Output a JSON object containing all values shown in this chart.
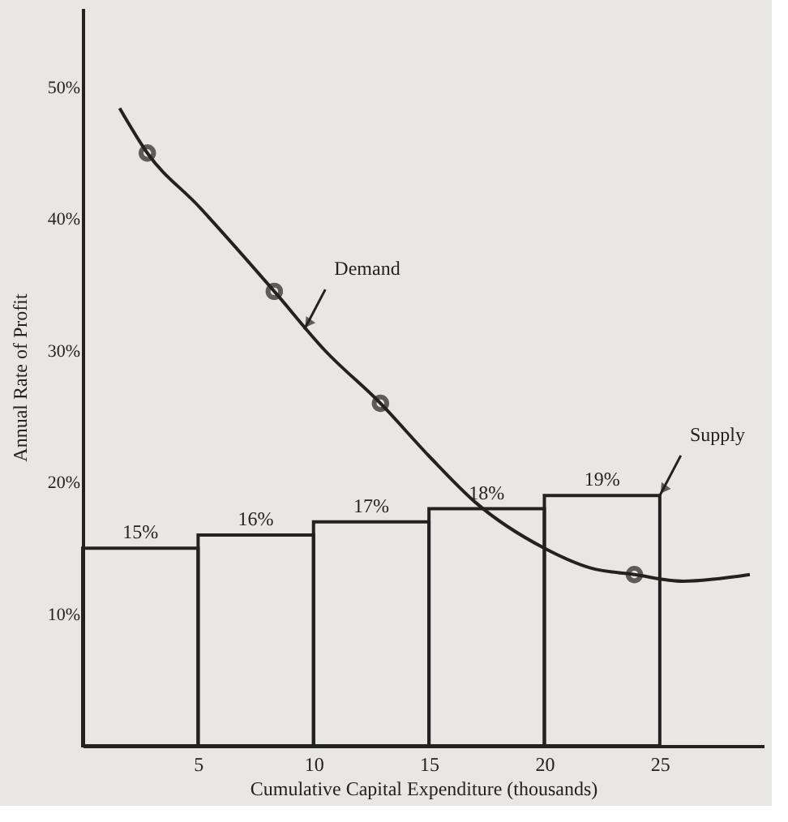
{
  "chart_data": {
    "type": "histogram",
    "xlabel": "Cumulative Capital Expenditure (thousands)",
    "ylabel": "Annual Rate of Profit",
    "xlim": [
      0,
      29.5
    ],
    "ylim": [
      0,
      56
    ],
    "xticks": [
      5,
      10,
      15,
      20,
      25
    ],
    "yticks": [
      {
        "value": 10,
        "label": "10%"
      },
      {
        "value": 20,
        "label": "20%"
      },
      {
        "value": 30,
        "label": "30%"
      },
      {
        "value": 40,
        "label": "40%"
      },
      {
        "value": 50,
        "label": "50%"
      }
    ],
    "grid": false,
    "series": [
      {
        "color": "#222222",
        "bins": [
          0,
          5,
          10,
          15,
          20,
          25
        ],
        "values": [
          15,
          16,
          17,
          18,
          19
        ],
        "value_labels": [
          "15%",
          "16%",
          "17%",
          "18%",
          "19%"
        ]
      },
      {
        "type": "line",
        "color": "#222222",
        "line_style": "solid",
        "x": [
          1.6,
          2.8,
          5,
          8.3,
          10.5,
          12.9,
          15,
          17,
          20,
          22,
          23.9,
          26,
          28.9
        ],
        "values": [
          48.4,
          45,
          41,
          34.5,
          30,
          26,
          22,
          18.5,
          15,
          13.5,
          13,
          12.5,
          13
        ]
      },
      {
        "type": "scatter",
        "color": "#222222",
        "marker": "circle",
        "x": [
          2.8,
          8.3,
          12.9,
          23.9
        ],
        "values": [
          45,
          34.5,
          26,
          13
        ]
      }
    ],
    "annotations": [
      {
        "text": "Demand",
        "x": 9.6,
        "y": 31.6
      },
      {
        "text": "Supply",
        "x": 25,
        "y": 19
      }
    ]
  }
}
